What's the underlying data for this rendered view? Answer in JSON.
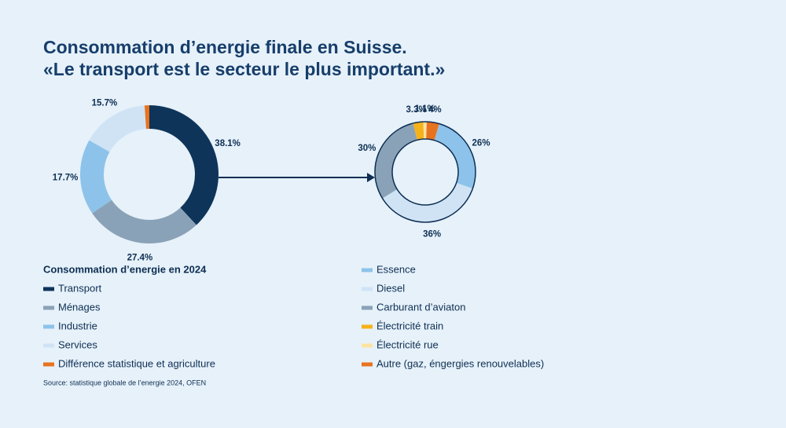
{
  "title": [
    "Consommation d’energie finale en Suisse.",
    "«Le transport est le secteur le plus important.»"
  ],
  "source": "Source: statistique globale de l’energie 2024, OFEN",
  "chart_data": [
    {
      "type": "donut",
      "legend_title": "Consommation d’energie en 2024",
      "categories": [
        "Transport",
        "Ménages",
        "Industrie",
        "Services",
        "Différence statistique et agriculture"
      ],
      "values": [
        38.1,
        27.4,
        17.7,
        15.7,
        1.1
      ],
      "value_labels": [
        "38.1%",
        "27.4%",
        "17.7%",
        "15.7%",
        null
      ],
      "colors": [
        "#0e3459",
        "#8aa2b7",
        "#8dc3ea",
        "#cfe3f5",
        "#e8731e"
      ]
    },
    {
      "type": "donut",
      "categories": [
        "Essence",
        "Diesel",
        "Carburant d’aviaton",
        "Électricité train",
        "Électricité rue",
        "Autre (gaz, éngergies renouvelables)"
      ],
      "values": [
        26,
        36,
        30,
        3.3,
        1.1,
        4
      ],
      "value_labels": [
        "26%",
        "36%",
        "30%",
        "3.3%",
        "1.1%",
        "4%"
      ],
      "colors": [
        "#8dc3ea",
        "#cfe3f5",
        "#8aa2b7",
        "#f5b21a",
        "#fde3a3",
        "#e8731e"
      ]
    }
  ]
}
